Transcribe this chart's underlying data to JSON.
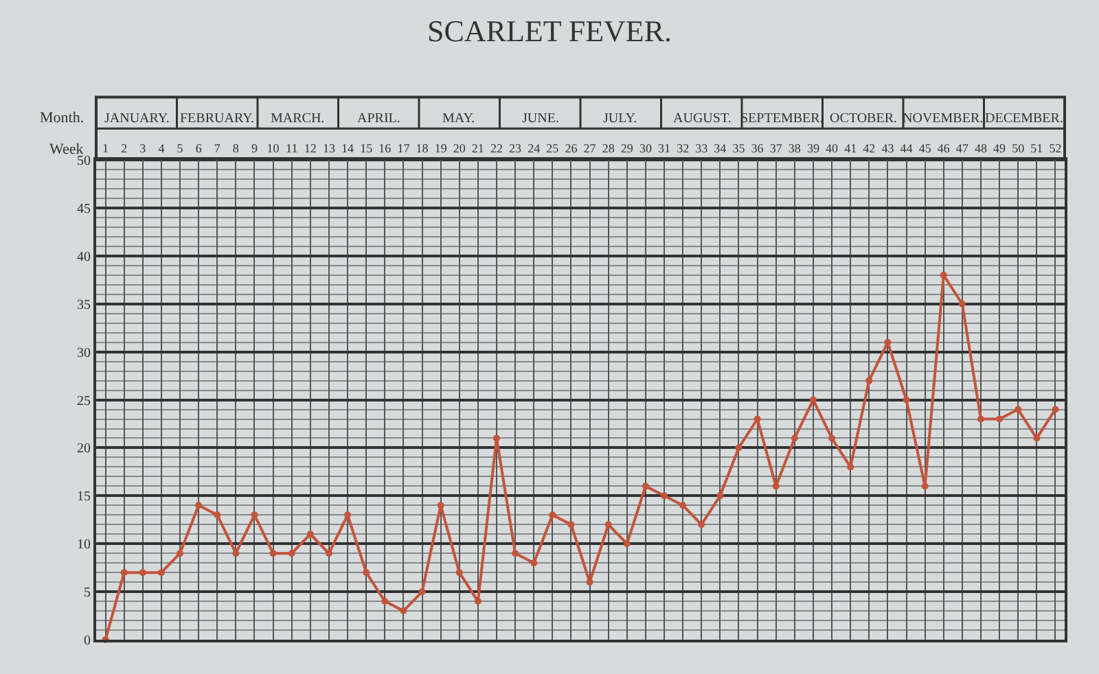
{
  "chart_data": {
    "type": "line",
    "title": "SCARLET FEVER.",
    "xlabel": "Week",
    "x": [
      1,
      2,
      3,
      4,
      5,
      6,
      7,
      8,
      9,
      10,
      11,
      12,
      13,
      14,
      15,
      16,
      17,
      18,
      19,
      20,
      21,
      22,
      23,
      24,
      25,
      26,
      27,
      28,
      29,
      30,
      31,
      32,
      33,
      34,
      35,
      36,
      37,
      38,
      39,
      40,
      41,
      42,
      43,
      44,
      45,
      46,
      47,
      48,
      49,
      50,
      51,
      52
    ],
    "series": [
      {
        "color": "#c2553b",
        "values": [
          0,
          7,
          7,
          7,
          9,
          14,
          13,
          9,
          13,
          9,
          9,
          11,
          9,
          13,
          7,
          4,
          3,
          5,
          14,
          7,
          4,
          21,
          9,
          8,
          13,
          12,
          6,
          12,
          10,
          16,
          15,
          14,
          12,
          15,
          20,
          23,
          16,
          21,
          25,
          21,
          18,
          27,
          31,
          25,
          16,
          38,
          35,
          23,
          23,
          24,
          21,
          24
        ]
      }
    ],
    "xlim": [
      0.5,
      52.5
    ],
    "xticks": [
      1,
      2,
      3,
      4,
      5,
      6,
      7,
      8,
      9,
      10,
      11,
      12,
      13,
      14,
      15,
      16,
      17,
      18,
      19,
      20,
      21,
      22,
      23,
      24,
      25,
      26,
      27,
      28,
      29,
      30,
      31,
      32,
      33,
      34,
      35,
      36,
      37,
      38,
      39,
      40,
      41,
      42,
      43,
      44,
      45,
      46,
      47,
      48,
      49,
      50,
      51,
      52
    ],
    "annotations": [
      "Month.",
      "JANUARY.",
      "FEBRUARY.",
      "MARCH.",
      "APRIL.",
      "MAY.",
      "JUNE.",
      "JULY.",
      "AUGUST.",
      "SEPTEMBER.",
      "OCTOBER.",
      "NOVEMBER.",
      "DECEMBER."
    ],
    "ylim": [
      0,
      50
    ],
    "yticks": [
      0,
      5,
      10,
      15,
      20,
      25,
      30,
      35,
      40,
      45,
      50
    ],
    "grid": true,
    "marker": "circle",
    "line_style": "solid"
  }
}
